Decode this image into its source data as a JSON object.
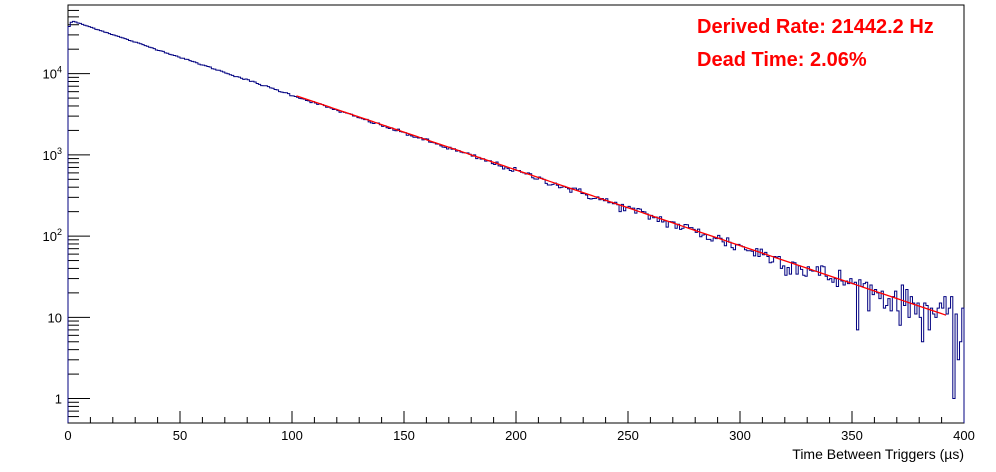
{
  "chart_data": {
    "type": "histogram",
    "title": "",
    "xlabel": "Time Between Triggers (µs)",
    "ylabel": "",
    "xlim": [
      0,
      400
    ],
    "ylim": [
      0.5,
      70000
    ],
    "yscale": "log",
    "grid": false,
    "x_ticks": [
      0,
      50,
      100,
      150,
      200,
      250,
      300,
      350,
      400
    ],
    "x_tick_labels": [
      "0",
      "50",
      "100",
      "150",
      "200",
      "250",
      "300",
      "350",
      "400"
    ],
    "y_tick_labels": [
      {
        "value": 1,
        "base": "1",
        "exp": ""
      },
      {
        "value": 10,
        "base": "10",
        "exp": ""
      },
      {
        "value": 100,
        "base": "10",
        "exp": "2"
      },
      {
        "value": 1000,
        "base": "10",
        "exp": "3"
      },
      {
        "value": 10000,
        "base": "10",
        "exp": "4"
      }
    ],
    "histogram": {
      "bin_width": 1,
      "x_start": 0,
      "x_end": 400,
      "peak_x": 2,
      "peak_count": 44000,
      "decay_per_us": 0.02144,
      "color": "#000080"
    },
    "histogram_irregular_bins": [
      {
        "x": 0,
        "count": 38000
      },
      {
        "x": 1,
        "count": 43000
      },
      {
        "x": 395,
        "count": 1
      },
      {
        "x": 396,
        "count": 11
      },
      {
        "x": 398,
        "count": 5
      },
      {
        "x": 399,
        "count": 13
      }
    ],
    "fit": {
      "x_range": [
        102,
        392
      ],
      "amplitude_at_0": 47500,
      "rate_per_us": 0.0214422,
      "color": "#ff0000"
    },
    "annotations": [
      {
        "text": "Derived Rate: 21442.2 Hz",
        "color": "#ff0000"
      },
      {
        "text": "Dead Time: 2.06%",
        "color": "#ff0000"
      }
    ]
  }
}
